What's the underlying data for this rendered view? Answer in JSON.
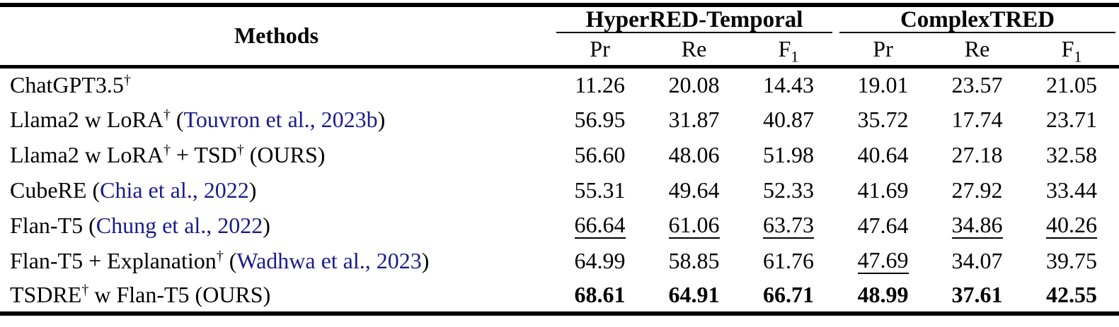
{
  "page": {
    "background_color": "#ffffff",
    "text_color": "#000000",
    "rule_color": "#000000",
    "citation_color": "#1b1b8c"
  },
  "table": {
    "header": {
      "methods_label": "Methods",
      "groups": [
        {
          "label": "HyperRED-Temporal"
        },
        {
          "label": "ComplexTRED"
        }
      ],
      "metric_columns": [
        {
          "base": "Pr",
          "sub": ""
        },
        {
          "base": "Re",
          "sub": ""
        },
        {
          "base": "F",
          "sub": "1"
        },
        {
          "base": "Pr",
          "sub": ""
        },
        {
          "base": "Re",
          "sub": ""
        },
        {
          "base": "F",
          "sub": "1"
        }
      ]
    },
    "rows": [
      {
        "method": [
          {
            "text": "ChatGPT3.5"
          },
          {
            "text": "†",
            "sup": true
          }
        ],
        "values": [
          {
            "text": "11.26"
          },
          {
            "text": "20.08"
          },
          {
            "text": "14.43"
          },
          {
            "text": "19.01"
          },
          {
            "text": "23.57"
          },
          {
            "text": "21.05"
          }
        ]
      },
      {
        "method": [
          {
            "text": "Llama2 w LoRA"
          },
          {
            "text": "†",
            "sup": true
          },
          {
            "text": " ("
          },
          {
            "text": "Touvron et al., 2023b",
            "cite": true
          },
          {
            "text": ")"
          }
        ],
        "values": [
          {
            "text": "56.95"
          },
          {
            "text": "31.87"
          },
          {
            "text": "40.87"
          },
          {
            "text": "35.72"
          },
          {
            "text": "17.74"
          },
          {
            "text": "23.71"
          }
        ]
      },
      {
        "method": [
          {
            "text": "Llama2 w LoRA"
          },
          {
            "text": "†",
            "sup": true
          },
          {
            "text": " + TSD"
          },
          {
            "text": "†",
            "sup": true
          },
          {
            "text": " (OURS)"
          }
        ],
        "values": [
          {
            "text": "56.60"
          },
          {
            "text": "48.06"
          },
          {
            "text": "51.98"
          },
          {
            "text": "40.64"
          },
          {
            "text": "27.18"
          },
          {
            "text": "32.58"
          }
        ]
      },
      {
        "method": [
          {
            "text": "CubeRE ("
          },
          {
            "text": "Chia et al., 2022",
            "cite": true
          },
          {
            "text": ")"
          }
        ],
        "values": [
          {
            "text": "55.31"
          },
          {
            "text": "49.64"
          },
          {
            "text": "52.33"
          },
          {
            "text": "41.69"
          },
          {
            "text": "27.92"
          },
          {
            "text": "33.44"
          }
        ]
      },
      {
        "method": [
          {
            "text": "Flan-T5 ("
          },
          {
            "text": "Chung et al., 2022",
            "cite": true
          },
          {
            "text": ")"
          }
        ],
        "values": [
          {
            "text": "66.64",
            "underline": true
          },
          {
            "text": "61.06",
            "underline": true
          },
          {
            "text": "63.73",
            "underline": true
          },
          {
            "text": "47.64"
          },
          {
            "text": "34.86",
            "underline": true
          },
          {
            "text": "40.26",
            "underline": true
          }
        ]
      },
      {
        "method": [
          {
            "text": "Flan-T5 + Explanation"
          },
          {
            "text": "†",
            "sup": true
          },
          {
            "text": " ("
          },
          {
            "text": "Wadhwa et al., 2023",
            "cite": true
          },
          {
            "text": ")"
          }
        ],
        "values": [
          {
            "text": "64.99"
          },
          {
            "text": "58.85"
          },
          {
            "text": "61.76"
          },
          {
            "text": "47.69",
            "underline": true
          },
          {
            "text": "34.07"
          },
          {
            "text": "39.75"
          }
        ]
      },
      {
        "method": [
          {
            "text": "TSDRE"
          },
          {
            "text": "†",
            "sup": true
          },
          {
            "text": " w Flan-T5 (OURS)"
          }
        ],
        "values": [
          {
            "text": "68.61",
            "bold": true
          },
          {
            "text": "64.91",
            "bold": true
          },
          {
            "text": "66.71",
            "bold": true
          },
          {
            "text": "48.99",
            "bold": true
          },
          {
            "text": "37.61",
            "bold": true
          },
          {
            "text": "42.55",
            "bold": true
          }
        ]
      }
    ]
  }
}
